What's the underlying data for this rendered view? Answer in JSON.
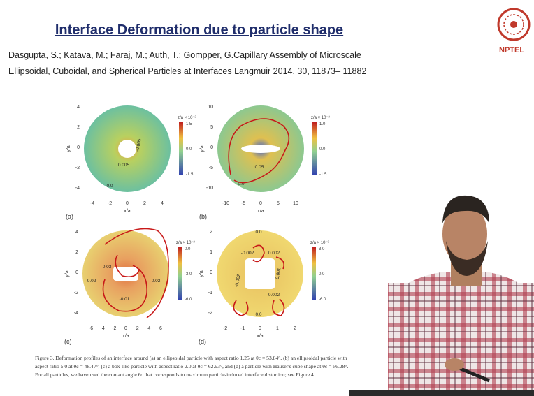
{
  "header": {
    "title": "Interface Deformation due to particle shape",
    "logo": "NPTEL"
  },
  "reference": [
    "Dasgupta, S.; Katava, M.; Faraj, M.; Auth, T.; Gompper, G.Capillary Assembly of Microscale",
    "Ellipsoidal, Cuboidal, and Spherical Particles at Interfaces Langmuir 2014, 30, 11873– 11882"
  ],
  "figure": {
    "panels": [
      {
        "label": "(a)",
        "x_label": "x/a",
        "y_label": "y/a",
        "x_ticks": [
          "-4",
          "-2",
          "0",
          "2",
          "4"
        ],
        "y_ticks": [
          "4",
          "2",
          "0",
          "-2",
          "-4"
        ],
        "colorbar_title": "z/a × 10⁻²",
        "colorbar_ticks": [
          "1.5",
          "0.0",
          "-1.5"
        ],
        "annotations": [
          "-0.005",
          "0.005",
          "0.0"
        ]
      },
      {
        "label": "(b)",
        "x_label": "x/a",
        "y_label": "y/a",
        "x_ticks": [
          "-10",
          "-5",
          "0",
          "5",
          "10"
        ],
        "y_ticks": [
          "10",
          "5",
          "0",
          "-5",
          "-10"
        ],
        "colorbar_title": "z/a × 10⁻²",
        "colorbar_ticks": [
          "1.0",
          "0.0",
          "-1.5"
        ],
        "annotations": [
          "0.05",
          "0.0"
        ]
      },
      {
        "label": "(c)",
        "x_label": "x/a",
        "y_label": "y/a",
        "x_ticks": [
          "-6",
          "-4",
          "-2",
          "0",
          "2",
          "4",
          "6"
        ],
        "y_ticks": [
          "4",
          "2",
          "0",
          "-2",
          "-4"
        ],
        "colorbar_title": "z/a × 10⁻²",
        "colorbar_ticks": [
          "0.0",
          "-3.0",
          "-6.0"
        ],
        "annotations": [
          "-0.03",
          "-0.02",
          "-0.02",
          "-0.01"
        ]
      },
      {
        "label": "(d)",
        "x_label": "x/a",
        "y_label": "y/a",
        "x_ticks": [
          "-2",
          "-1",
          "0",
          "1",
          "2"
        ],
        "y_ticks": [
          "2",
          "1",
          "0",
          "-1",
          "-2"
        ],
        "colorbar_title": "z/a × 10⁻³",
        "colorbar_ticks": [
          "3.0",
          "0.0",
          "-6.0"
        ],
        "annotations": [
          "0.0",
          "-0.002",
          "0.002",
          "0.001",
          "-0.002",
          "0.002",
          "0.0"
        ]
      }
    ],
    "caption": [
      "Figure 3. Deformation profiles of an interface around (a) an ellipsoidal particle with aspect ratio 1.25 at θc = 53.84°, (b) an ellipsoidal particle with",
      "aspect ratio 5.0 at θc = 48.47°, (c) a box-like particle with aspect ratio 2.0 at θc = 62.93°, and (d) a particle with Hauser's cube shape at θc = 56.28°.",
      "For all particles, we have used the contact angle θc that corresponds to maximum particle-induced interface distortion; see Figure 4."
    ]
  }
}
